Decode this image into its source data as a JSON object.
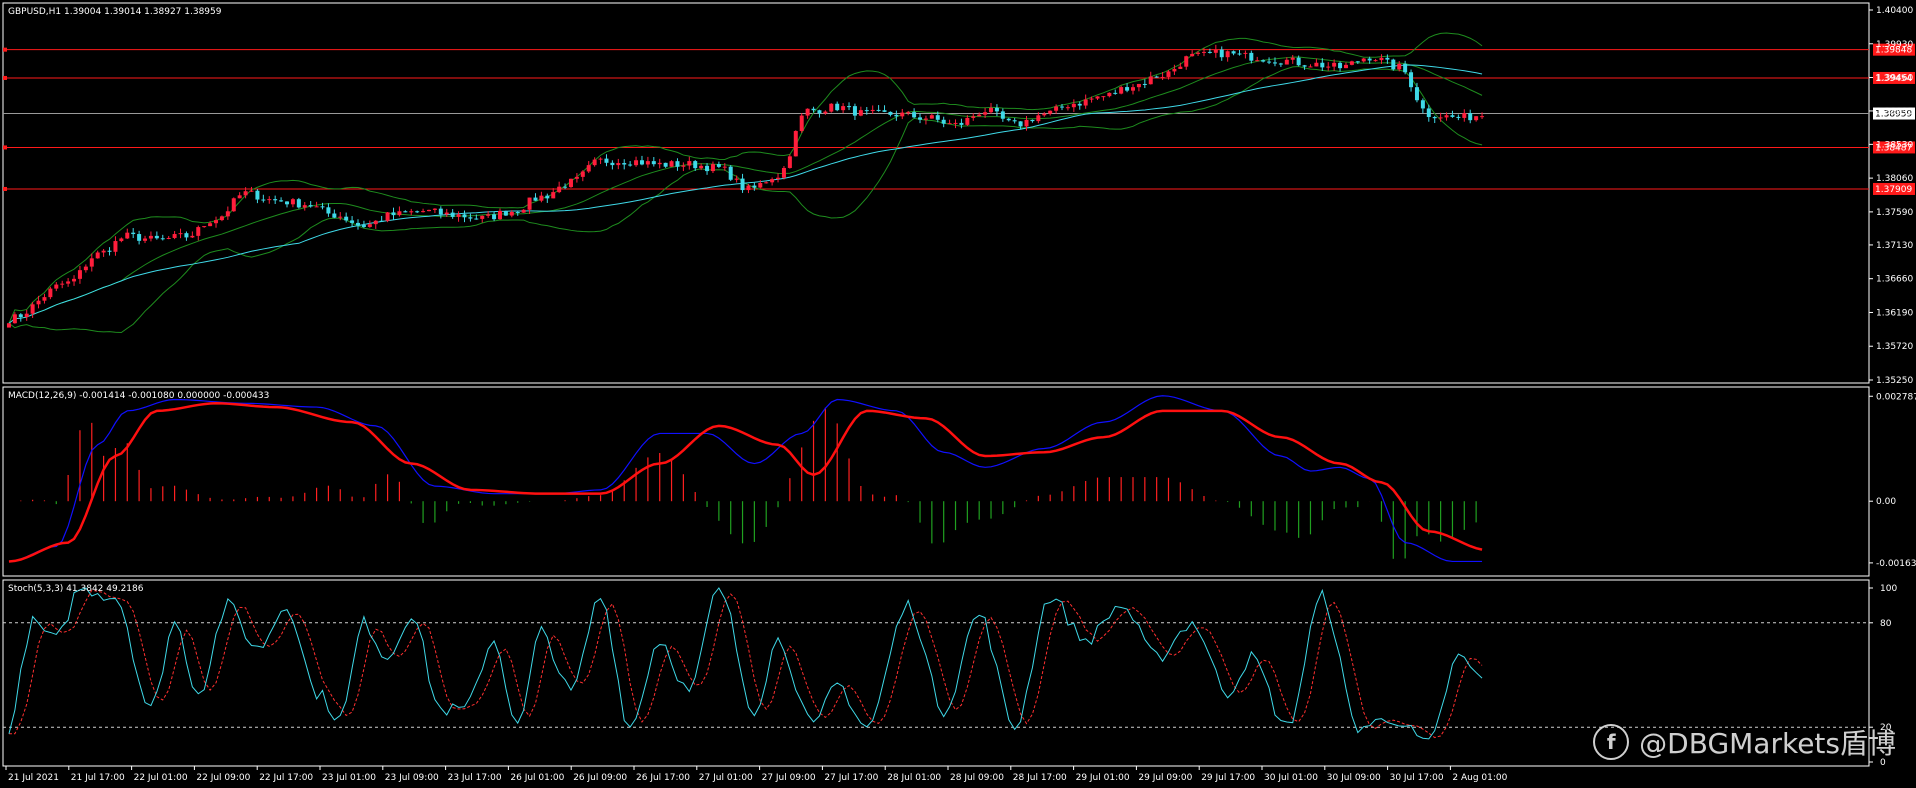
{
  "header": {
    "price_title": "GBPUSD,H1  1.39004 1.39014 1.38927 1.38959",
    "macd_title": "MACD(12,26,9) -0.001414 -0.001080 0.000000 -0.000433",
    "stoch_title": "Stoch(5,3,3) 41.3842 49.2186"
  },
  "watermark": {
    "text": "@DBGMarkets盾博",
    "icon": "f-logo-icon"
  },
  "colors": {
    "background": "#000000",
    "grid": "#1a1a1a",
    "frame": "#ffffff",
    "bull": "#ff1e3c",
    "bear": "#3fd9e8",
    "ma": "#3fd9e8",
    "bollinger": "#1e8c1e",
    "macd_line": "#1010ff",
    "signal": "#ff1010",
    "hist_up": "#ff2020",
    "hist_down": "#20a020",
    "stoch_main": "#3fd9e8",
    "stoch_signal": "#ff3030",
    "hline": "#ff1a1a"
  },
  "chart_data": [
    {
      "type": "candlestick",
      "name": "GBPUSD,H1",
      "ylim": [
        1.3525,
        1.404
      ],
      "y_ticks": [
        "1.40400",
        "1.39930",
        "1.39460",
        "1.38995",
        "1.38530",
        "1.38060",
        "1.37590",
        "1.37130",
        "1.36660",
        "1.36190",
        "1.35720",
        "1.35250"
      ],
      "horizontal_levels": [
        {
          "value": 1.39848,
          "label": "1.39848"
        },
        {
          "value": 1.39454,
          "label": "1.39454"
        },
        {
          "value": 1.38487,
          "label": "1.38487"
        },
        {
          "value": 1.37909,
          "label": "1.37909"
        }
      ],
      "current_price": {
        "value": 1.38959,
        "label": "1.38959"
      },
      "anchors": [
        [
          0,
          1.361
        ],
        [
          10,
          1.366
        ],
        [
          15,
          1.37
        ],
        [
          20,
          1.3725
        ],
        [
          25,
          1.372
        ],
        [
          30,
          1.3725
        ],
        [
          35,
          1.375
        ],
        [
          40,
          1.3785
        ],
        [
          45,
          1.3775
        ],
        [
          50,
          1.377
        ],
        [
          55,
          1.3755
        ],
        [
          60,
          1.374
        ],
        [
          65,
          1.3755
        ],
        [
          70,
          1.376
        ],
        [
          75,
          1.3755
        ],
        [
          80,
          1.375
        ],
        [
          85,
          1.376
        ],
        [
          90,
          1.378
        ],
        [
          95,
          1.38
        ],
        [
          100,
          1.383
        ],
        [
          105,
          1.383
        ],
        [
          110,
          1.3825
        ],
        [
          115,
          1.3825
        ],
        [
          120,
          1.382
        ],
        [
          125,
          1.379
        ],
        [
          130,
          1.381
        ],
        [
          135,
          1.39
        ],
        [
          140,
          1.3905
        ],
        [
          145,
          1.3895
        ],
        [
          150,
          1.3895
        ],
        [
          155,
          1.389
        ],
        [
          160,
          1.388
        ],
        [
          165,
          1.39
        ],
        [
          170,
          1.388
        ],
        [
          175,
          1.3895
        ],
        [
          180,
          1.391
        ],
        [
          185,
          1.392
        ],
        [
          190,
          1.3935
        ],
        [
          195,
          1.395
        ],
        [
          200,
          1.3975
        ],
        [
          205,
          1.398
        ],
        [
          210,
          1.3975
        ],
        [
          215,
          1.397
        ],
        [
          220,
          1.3965
        ],
        [
          225,
          1.396
        ],
        [
          230,
          1.3975
        ],
        [
          235,
          1.396
        ],
        [
          240,
          1.3895
        ],
        [
          245,
          1.389
        ],
        [
          250,
          1.3895
        ]
      ],
      "candle_count": 250
    },
    {
      "type": "macd",
      "ylim": [
        -0.00188,
        0.0029
      ],
      "y_ticks": [
        "0.002787",
        "0.00",
        "-0.001638"
      ],
      "macd_anchors": [
        [
          0,
          -0.0016
        ],
        [
          8,
          -0.0012
        ],
        [
          15,
          0.0015
        ],
        [
          20,
          0.0024
        ],
        [
          28,
          0.0027
        ],
        [
          40,
          0.0026
        ],
        [
          52,
          0.0025
        ],
        [
          62,
          0.002
        ],
        [
          72,
          0.0004
        ],
        [
          82,
          0.0002
        ],
        [
          92,
          0.0002
        ],
        [
          100,
          0.0003
        ],
        [
          110,
          0.0018
        ],
        [
          118,
          0.0018
        ],
        [
          126,
          0.001
        ],
        [
          134,
          0.0018
        ],
        [
          140,
          0.0027
        ],
        [
          150,
          0.0024
        ],
        [
          158,
          0.0013
        ],
        [
          165,
          0.0009
        ],
        [
          175,
          0.0014
        ],
        [
          185,
          0.0021
        ],
        [
          195,
          0.0028
        ],
        [
          205,
          0.0024
        ],
        [
          215,
          0.0012
        ],
        [
          220,
          0.0008
        ],
        [
          225,
          0.0009
        ],
        [
          230,
          0.0006
        ],
        [
          236,
          -0.0011
        ],
        [
          244,
          -0.0016
        ],
        [
          250,
          -0.0016
        ]
      ],
      "signal_anchors": [
        [
          0,
          -0.0016
        ],
        [
          10,
          -0.0011
        ],
        [
          18,
          0.0012
        ],
        [
          25,
          0.0024
        ],
        [
          35,
          0.0026
        ],
        [
          45,
          0.0025
        ],
        [
          58,
          0.0021
        ],
        [
          68,
          0.001
        ],
        [
          78,
          0.0003
        ],
        [
          90,
          0.0002
        ],
        [
          100,
          0.0002
        ],
        [
          110,
          0.001
        ],
        [
          120,
          0.002
        ],
        [
          130,
          0.0015
        ],
        [
          136,
          0.0007
        ],
        [
          145,
          0.0024
        ],
        [
          155,
          0.0022
        ],
        [
          165,
          0.0012
        ],
        [
          175,
          0.0013
        ],
        [
          185,
          0.0017
        ],
        [
          195,
          0.0024
        ],
        [
          205,
          0.0024
        ],
        [
          215,
          0.0017
        ],
        [
          225,
          0.001
        ],
        [
          232,
          0.0005
        ],
        [
          240,
          -0.0008
        ],
        [
          250,
          -0.0013
        ]
      ]
    },
    {
      "type": "stochastic",
      "ylim": [
        0,
        100
      ],
      "y_ticks": [
        "100",
        "80",
        "20",
        "0"
      ],
      "levels": [
        80,
        20
      ],
      "k_anchors": [
        [
          0,
          20
        ],
        [
          4,
          80
        ],
        [
          8,
          70
        ],
        [
          12,
          100
        ],
        [
          18,
          95
        ],
        [
          24,
          30
        ],
        [
          28,
          80
        ],
        [
          32,
          40
        ],
        [
          37,
          90
        ],
        [
          42,
          65
        ],
        [
          47,
          90
        ],
        [
          52,
          40
        ],
        [
          56,
          25
        ],
        [
          60,
          80
        ],
        [
          64,
          60
        ],
        [
          68,
          85
        ],
        [
          73,
          30
        ],
        [
          77,
          30
        ],
        [
          82,
          70
        ],
        [
          86,
          20
        ],
        [
          90,
          75
        ],
        [
          95,
          40
        ],
        [
          100,
          95
        ],
        [
          105,
          20
        ],
        [
          110,
          70
        ],
        [
          115,
          40
        ],
        [
          120,
          100
        ],
        [
          126,
          30
        ],
        [
          130,
          70
        ],
        [
          136,
          20
        ],
        [
          140,
          45
        ],
        [
          145,
          20
        ],
        [
          152,
          90
        ],
        [
          158,
          30
        ],
        [
          164,
          85
        ],
        [
          170,
          20
        ],
        [
          176,
          95
        ],
        [
          182,
          70
        ],
        [
          188,
          90
        ],
        [
          194,
          60
        ],
        [
          200,
          80
        ],
        [
          206,
          40
        ],
        [
          210,
          60
        ],
        [
          216,
          20
        ],
        [
          222,
          95
        ],
        [
          228,
          20
        ],
        [
          234,
          25
        ],
        [
          240,
          10
        ],
        [
          245,
          60
        ],
        [
          250,
          45
        ]
      ]
    }
  ],
  "x_axis": {
    "ticks": [
      "21 Jul 2021",
      "21 Jul 17:00",
      "22 Jul 01:00",
      "22 Jul 09:00",
      "22 Jul 17:00",
      "23 Jul 01:00",
      "23 Jul 09:00",
      "23 Jul 17:00",
      "26 Jul 01:00",
      "26 Jul 09:00",
      "26 Jul 17:00",
      "27 Jul 01:00",
      "27 Jul 09:00",
      "27 Jul 17:00",
      "28 Jul 01:00",
      "28 Jul 09:00",
      "28 Jul 17:00",
      "29 Jul 01:00",
      "29 Jul 09:00",
      "29 Jul 17:00",
      "30 Jul 01:00",
      "30 Jul 09:00",
      "30 Jul 17:00",
      "2 Aug 01:00"
    ]
  }
}
